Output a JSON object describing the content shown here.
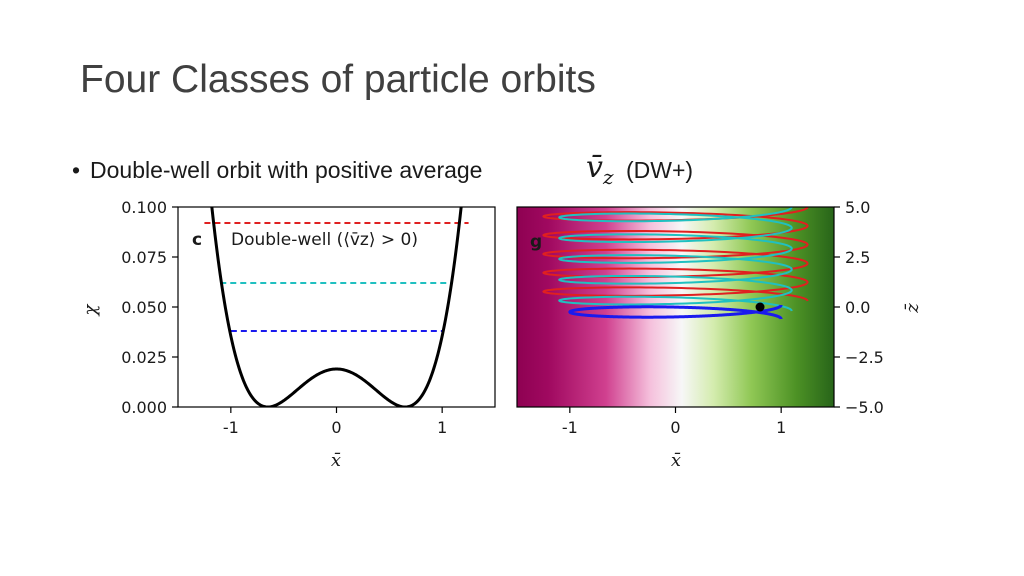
{
  "slide": {
    "title": "Four Classes of particle orbits",
    "bullet_text": "Double-well orbit with positive average",
    "bullet_symbol": "v̄",
    "bullet_symbol_sub": "z",
    "bullet_suffix": "(DW+)"
  },
  "chart_data": [
    {
      "type": "line",
      "panel_label": "c",
      "annotation": "Double-well (⟨v̄z⟩ > 0)",
      "xlabel": "x̄",
      "ylabel": "χ",
      "xlim": [
        -1.5,
        1.5
      ],
      "ylim": [
        0,
        0.1
      ],
      "xticks": [
        -1,
        0,
        1
      ],
      "xtick_labels": [
        "-1",
        "0",
        "1"
      ],
      "yticks": [
        0,
        0.025,
        0.05,
        0.075,
        0.1
      ],
      "ytick_labels": [
        "0.000",
        "0.025",
        "0.050",
        "0.075",
        "0.100"
      ],
      "potential_curve": {
        "color": "#000000",
        "well_positions": [
          -0.65,
          0.65
        ],
        "barrier_height": 0.019
      },
      "levels": [
        {
          "value": 0.092,
          "x_range": [
            -1.25,
            1.25
          ],
          "color": "#e02020",
          "style": "dashed"
        },
        {
          "value": 0.062,
          "x_range": [
            -1.1,
            1.1
          ],
          "color": "#20c0c0",
          "style": "dashed"
        },
        {
          "value": 0.038,
          "x_range": [
            -1.0,
            1.0
          ],
          "color": "#1a1aee",
          "style": "dashed"
        }
      ]
    },
    {
      "type": "line",
      "panel_label": "g",
      "xlabel": "x̄",
      "ylabel": "z̄",
      "xlim": [
        -1.5,
        1.5
      ],
      "ylim": [
        -5,
        5
      ],
      "xticks": [
        -1,
        0,
        1
      ],
      "xtick_labels": [
        "-1",
        "0",
        "1"
      ],
      "yticks": [
        -5,
        -2.5,
        0,
        2.5,
        5
      ],
      "ytick_labels": [
        "−5.0",
        "−2.5",
        "0.0",
        "2.5",
        "5.0"
      ],
      "yaxis_side": "right",
      "background_colormap": [
        "#8e0152",
        "#c51b7d",
        "#f7f7f7",
        "#7fbc41",
        "#276419"
      ],
      "orbits": [
        {
          "color": "#e02020",
          "x_amplitude": 1.25,
          "z_start": 0.3,
          "z_end": 5,
          "turns": 5
        },
        {
          "color": "#20c0c0",
          "x_amplitude": 1.1,
          "z_start": -0.2,
          "z_end": 5,
          "turns": 5
        },
        {
          "color": "#1a1aee",
          "x_amplitude": 1.0,
          "z_start": -0.6,
          "z_end": 0.1,
          "turns": 1
        }
      ],
      "marker": {
        "x": 0.8,
        "z": 0.0,
        "color": "#000000"
      }
    }
  ]
}
